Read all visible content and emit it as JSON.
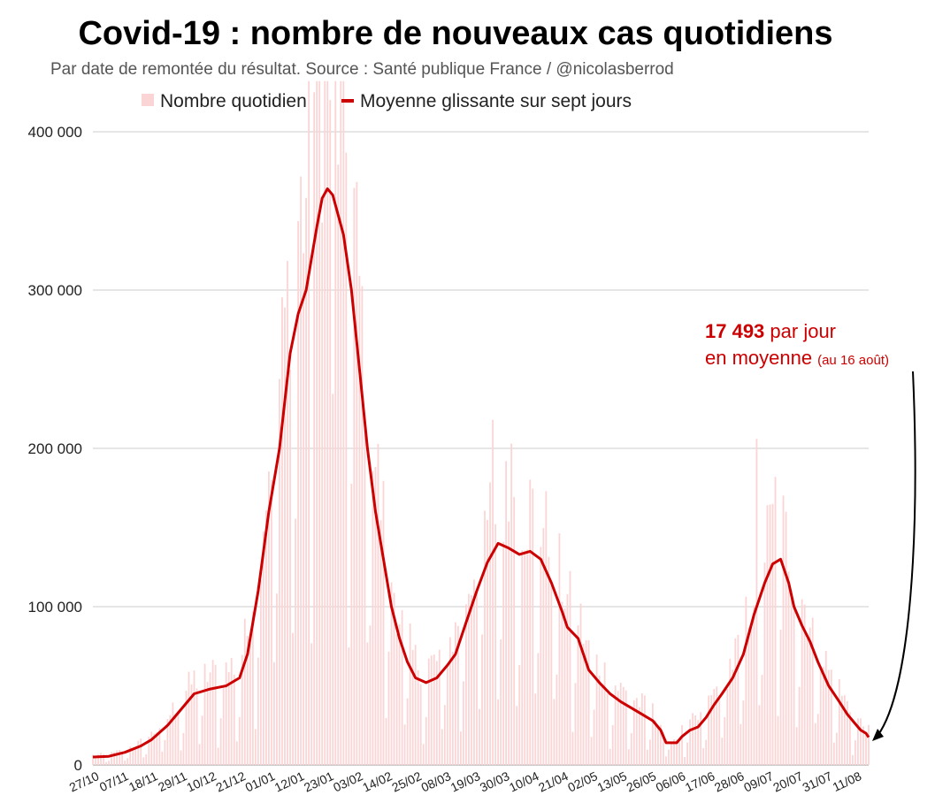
{
  "chart_data": {
    "type": "bar+line",
    "title": "Covid-19 : nombre de nouveaux cas quotidiens",
    "subtitle": "Par date de remontée du résultat. Source : Santé publique France / @nicolasberrod",
    "legend": {
      "bars_label": "Nombre quotidien",
      "line_label": "Moyenne glissante sur sept jours",
      "placement": "top-center"
    },
    "colors": {
      "bars": "#fbd5d5",
      "line": "#cc0000",
      "grid": "#cccccc",
      "annotation": "#cc0000",
      "arrow": "#000000"
    },
    "y_ticks": [
      {
        "value": 0,
        "label": "0"
      },
      {
        "value": 100000,
        "label": "100 000"
      },
      {
        "value": 200000,
        "label": "200 000"
      },
      {
        "value": 300000,
        "label": "300 000"
      },
      {
        "value": 400000,
        "label": "400 000"
      }
    ],
    "ylim": [
      0,
      400000
    ],
    "x_ticks": [
      {
        "day": 0,
        "label": "27/10"
      },
      {
        "day": 11,
        "label": "07/11"
      },
      {
        "day": 22,
        "label": "18/11"
      },
      {
        "day": 33,
        "label": "29/11"
      },
      {
        "day": 44,
        "label": "10/12"
      },
      {
        "day": 55,
        "label": "21/12"
      },
      {
        "day": 66,
        "label": "01/01"
      },
      {
        "day": 77,
        "label": "12/01"
      },
      {
        "day": 88,
        "label": "23/01"
      },
      {
        "day": 99,
        "label": "03/02"
      },
      {
        "day": 110,
        "label": "14/02"
      },
      {
        "day": 121,
        "label": "25/02"
      },
      {
        "day": 132,
        "label": "08/03"
      },
      {
        "day": 143,
        "label": "19/03"
      },
      {
        "day": 154,
        "label": "30/03"
      },
      {
        "day": 165,
        "label": "10/04"
      },
      {
        "day": 176,
        "label": "21/04"
      },
      {
        "day": 187,
        "label": "02/05"
      },
      {
        "day": 198,
        "label": "13/05"
      },
      {
        "day": 209,
        "label": "26/05"
      },
      {
        "day": 220,
        "label": "06/06"
      },
      {
        "day": 231,
        "label": "17/06"
      },
      {
        "day": 242,
        "label": "28/06"
      },
      {
        "day": 253,
        "label": "09/07"
      },
      {
        "day": 264,
        "label": "20/07"
      },
      {
        "day": 275,
        "label": "31/07"
      },
      {
        "day": 286,
        "label": "11/08"
      }
    ],
    "x_range_days": [
      0,
      291
    ],
    "moving_average": {
      "name": "Moyenne glissante sur sept jours",
      "keypoints": [
        [
          0,
          5000
        ],
        [
          6,
          5500
        ],
        [
          12,
          8000
        ],
        [
          18,
          12000
        ],
        [
          22,
          16000
        ],
        [
          28,
          25000
        ],
        [
          33,
          35000
        ],
        [
          38,
          45000
        ],
        [
          44,
          48000
        ],
        [
          50,
          50000
        ],
        [
          55,
          55000
        ],
        [
          58,
          70000
        ],
        [
          62,
          110000
        ],
        [
          66,
          160000
        ],
        [
          70,
          200000
        ],
        [
          74,
          260000
        ],
        [
          77,
          285000
        ],
        [
          80,
          300000
        ],
        [
          84,
          340000
        ],
        [
          86,
          358000
        ],
        [
          88,
          364000
        ],
        [
          90,
          360000
        ],
        [
          94,
          335000
        ],
        [
          97,
          300000
        ],
        [
          100,
          250000
        ],
        [
          103,
          200000
        ],
        [
          106,
          160000
        ],
        [
          109,
          130000
        ],
        [
          112,
          100000
        ],
        [
          115,
          80000
        ],
        [
          118,
          65000
        ],
        [
          121,
          55000
        ],
        [
          125,
          52000
        ],
        [
          129,
          55000
        ],
        [
          133,
          63000
        ],
        [
          136,
          70000
        ],
        [
          140,
          90000
        ],
        [
          144,
          110000
        ],
        [
          148,
          128000
        ],
        [
          152,
          140000
        ],
        [
          156,
          137000
        ],
        [
          160,
          133000
        ],
        [
          164,
          135000
        ],
        [
          168,
          130000
        ],
        [
          172,
          115000
        ],
        [
          176,
          97000
        ],
        [
          178,
          87000
        ],
        [
          182,
          80000
        ],
        [
          186,
          60000
        ],
        [
          190,
          52000
        ],
        [
          194,
          45000
        ],
        [
          198,
          40000
        ],
        [
          202,
          36000
        ],
        [
          206,
          32000
        ],
        [
          210,
          28000
        ],
        [
          213,
          22000
        ],
        [
          215,
          14000
        ],
        [
          219,
          14000
        ],
        [
          221,
          18000
        ],
        [
          224,
          22000
        ],
        [
          227,
          24000
        ],
        [
          230,
          30000
        ],
        [
          233,
          38000
        ],
        [
          236,
          45000
        ],
        [
          240,
          55000
        ],
        [
          244,
          70000
        ],
        [
          248,
          95000
        ],
        [
          252,
          115000
        ],
        [
          255,
          127000
        ],
        [
          258,
          130000
        ],
        [
          261,
          115000
        ],
        [
          263,
          100000
        ],
        [
          266,
          88000
        ],
        [
          269,
          78000
        ],
        [
          272,
          65000
        ],
        [
          276,
          50000
        ],
        [
          280,
          40000
        ],
        [
          283,
          32000
        ],
        [
          286,
          26000
        ],
        [
          288,
          22000
        ],
        [
          290,
          20000
        ],
        [
          291,
          17493
        ]
      ]
    },
    "daily_peaks": [
      {
        "day": 83,
        "value": 425000
      },
      {
        "day": 89,
        "value": 420000
      },
      {
        "day": 150,
        "value": 218000
      },
      {
        "day": 157,
        "value": 203000
      },
      {
        "day": 249,
        "value": 206000
      },
      {
        "day": 256,
        "value": 182000
      }
    ],
    "annotation": {
      "value": "17 493",
      "line1_rest": " par jour",
      "line2": "en moyenne",
      "note": "(au 16 août)"
    }
  }
}
